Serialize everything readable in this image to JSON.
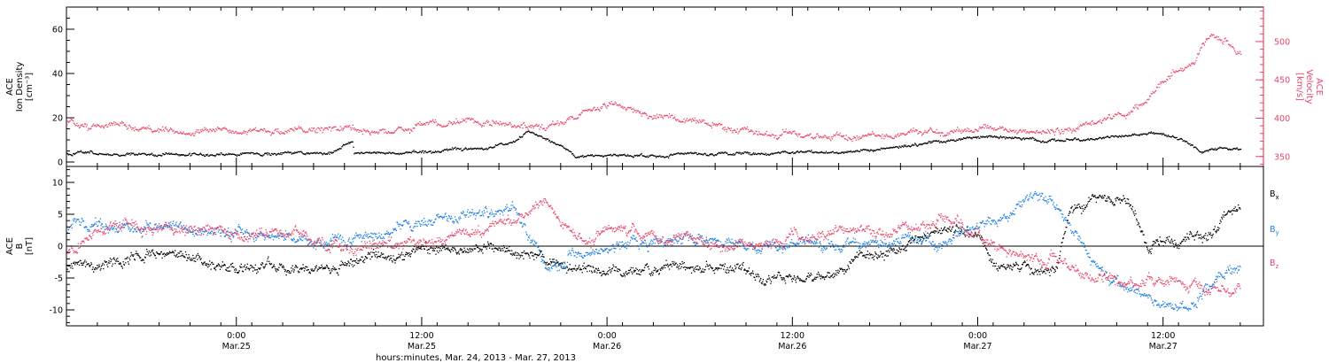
{
  "colors": {
    "black": "#000000",
    "pink": "#e8456a",
    "blue": "#1f7fe0"
  },
  "x_axis": {
    "title": "hours:minutes, Mar. 24, 2013 - Mar. 27, 2013",
    "ticks": [
      {
        "h": 24,
        "time": "0:00",
        "date": "Mar.25"
      },
      {
        "h": 36,
        "time": "12:00",
        "date": "Mar.25"
      },
      {
        "h": 48,
        "time": "0:00",
        "date": "Mar.26"
      },
      {
        "h": 60,
        "time": "12:00",
        "date": "Mar.26"
      },
      {
        "h": 72,
        "time": "0:00",
        "date": "Mar.27"
      },
      {
        "h": 84,
        "time": "12:00",
        "date": "Mar.27"
      }
    ]
  },
  "chart_data": [
    {
      "type": "scatter",
      "panel": "top",
      "xlim": [
        13.0,
        90.5
      ],
      "x_unit": "hours since Mar. 24, 2013 00:00",
      "ylabel_lines": [
        "ACE",
        "Ion Density",
        "[cm⁻³]"
      ],
      "ylim": [
        -2,
        70
      ],
      "yticks": [
        0,
        20,
        40,
        60
      ],
      "y2label_lines": [
        "ACE",
        "Velocity",
        "[km/s]"
      ],
      "y2lim": [
        337,
        545
      ],
      "y2ticks": [
        350,
        400,
        450,
        500
      ],
      "series": [
        {
          "axis": "left",
          "color_key": "black",
          "x": [
            13,
            16,
            20,
            24,
            30,
            31.5,
            31.6,
            34,
            36,
            40,
            42,
            43,
            45,
            46,
            48,
            54,
            60,
            63,
            66,
            69,
            72,
            74,
            76,
            78,
            80,
            84,
            85.5,
            86.5,
            88,
            89
          ],
          "y": [
            4,
            4,
            3.5,
            4,
            4.5,
            10,
            4,
            4.5,
            5,
            6,
            10,
            14,
            8,
            3,
            3,
            3.5,
            4.5,
            5,
            6,
            9,
            12,
            11,
            10,
            10,
            11,
            13,
            10,
            5,
            6,
            6
          ]
        },
        {
          "axis": "right",
          "color_key": "pink",
          "x": [
            13,
            14.5,
            16,
            18,
            22,
            26,
            30,
            32,
            34,
            36,
            40,
            42,
            44,
            46,
            48,
            50,
            54,
            58,
            62,
            66,
            70,
            72,
            74,
            76,
            78,
            79,
            80,
            82,
            83,
            84,
            86,
            87,
            88,
            89
          ],
          "y": [
            395,
            385,
            395,
            385,
            385,
            380,
            390,
            385,
            380,
            390,
            395,
            390,
            385,
            405,
            420,
            410,
            395,
            380,
            375,
            380,
            382,
            388,
            386,
            380,
            384,
            392,
            400,
            410,
            430,
            450,
            475,
            510,
            500,
            480
          ]
        }
      ]
    },
    {
      "type": "scatter",
      "panel": "bottom",
      "xlim": [
        13.0,
        90.5
      ],
      "x_unit": "hours since Mar. 24, 2013 00:00",
      "ylabel_lines": [
        "ACE",
        "B",
        "[nT]"
      ],
      "ylim": [
        -12.5,
        12.5
      ],
      "yticks": [
        -10,
        -5,
        0,
        5,
        10
      ],
      "series": [
        {
          "name": "Bx",
          "color_key": "black",
          "legend_sub": "x",
          "x": [
            13,
            16,
            20,
            24,
            28,
            30,
            32,
            35,
            40,
            44,
            48,
            52,
            56,
            58,
            60,
            62,
            66,
            70,
            72,
            73,
            77,
            78,
            80,
            82,
            83,
            84,
            86,
            87,
            89
          ],
          "y": [
            -3,
            -2,
            -1,
            -3,
            -3.5,
            -3,
            -2,
            -1,
            0,
            -2,
            -4,
            -3,
            -4,
            -5,
            -5,
            -4,
            -1,
            3,
            2,
            -3,
            -4,
            6,
            8,
            7,
            0,
            1,
            2,
            2,
            7
          ]
        },
        {
          "name": "By",
          "color_key": "blue",
          "legend_sub": "y",
          "x": [
            13,
            16,
            20,
            24,
            28,
            30,
            32,
            35,
            38,
            40,
            42,
            43,
            44,
            46,
            50,
            54,
            58,
            62,
            66,
            70,
            72,
            74,
            76,
            77,
            78,
            80,
            82,
            84,
            86,
            88,
            89
          ],
          "y": [
            3,
            3,
            3,
            2,
            1,
            1,
            1,
            4,
            4,
            5,
            6,
            1,
            -3,
            -1,
            0,
            1,
            0.5,
            0,
            1,
            1,
            3,
            5,
            9,
            6,
            3,
            -4,
            -7,
            -9,
            -9,
            -4,
            -3
          ]
        },
        {
          "name": "Bz",
          "color_key": "pink",
          "legend_sub": "z",
          "x": [
            13,
            16,
            20,
            24,
            28,
            30,
            32,
            36,
            40,
            42,
            44,
            45,
            47,
            48,
            50,
            54,
            58,
            62,
            66,
            68,
            70,
            72,
            74,
            76,
            78,
            80,
            82,
            84,
            86,
            88,
            89
          ],
          "y": [
            -1,
            3,
            3,
            2,
            2,
            0,
            0,
            1,
            2,
            4,
            7,
            3,
            1,
            3,
            2,
            1,
            0,
            2,
            2,
            3,
            4,
            2,
            -1,
            -2,
            -3,
            -5,
            -6,
            -5,
            -6,
            -7,
            -6
          ]
        }
      ]
    }
  ]
}
